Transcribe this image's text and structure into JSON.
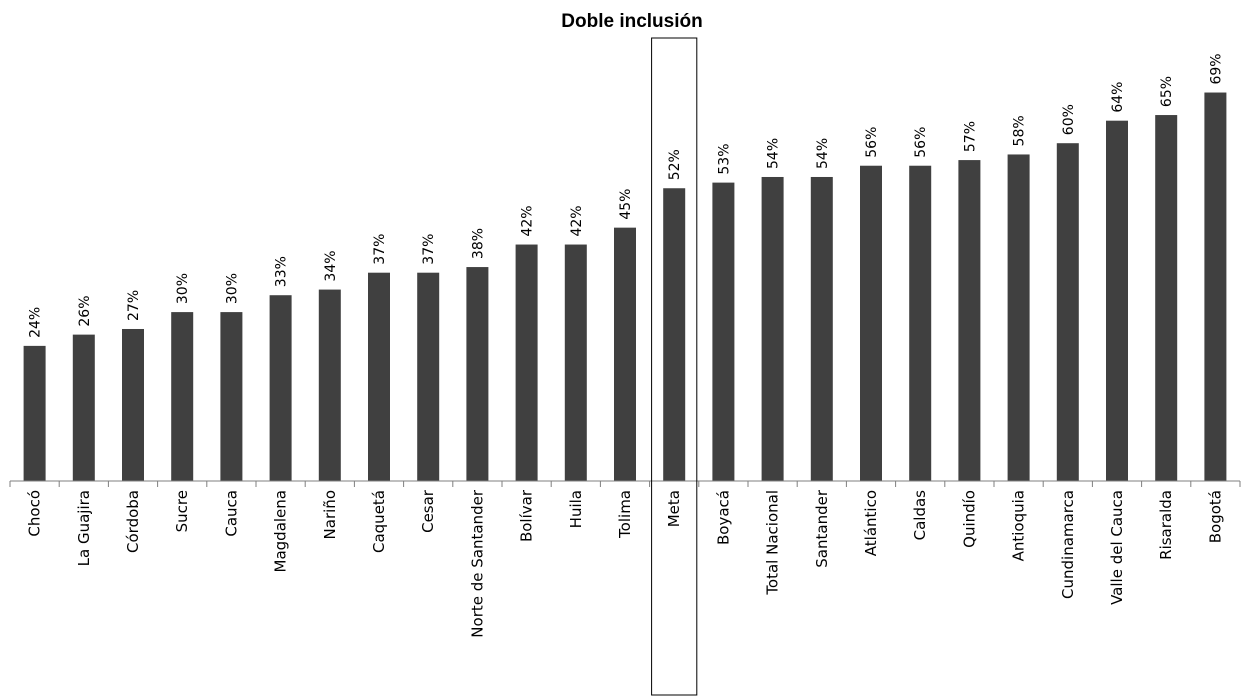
{
  "chart_data": {
    "type": "bar",
    "title": "Doble inclusión",
    "categories": [
      "Chocó",
      "La Guajira",
      "Córdoba",
      "Sucre",
      "Cauca",
      "Magdalena",
      "Nariño",
      "Caquetá",
      "Cesar",
      "Norte de Santander",
      "Bolívar",
      "Huila",
      "Tolima",
      "Meta",
      "Boyacá",
      "Total Nacional",
      "Santander",
      "Atlántico",
      "Caldas",
      "Quindío",
      "Antioquia",
      "Cundinamarca",
      "Valle del Cauca",
      "Risaralda",
      "Bogotá"
    ],
    "values": [
      24,
      26,
      27,
      30,
      30,
      33,
      34,
      37,
      37,
      38,
      42,
      42,
      45,
      52,
      53,
      54,
      54,
      56,
      56,
      57,
      58,
      60,
      64,
      65,
      69
    ],
    "value_labels": [
      "24%",
      "26%",
      "27%",
      "30%",
      "30%",
      "33%",
      "34%",
      "37%",
      "37%",
      "38%",
      "42%",
      "42%",
      "45%",
      "52%",
      "53%",
      "54%",
      "54%",
      "56%",
      "56%",
      "57%",
      "58%",
      "60%",
      "64%",
      "65%",
      "69%"
    ],
    "highlighted_category": "Meta",
    "ylim": [
      0,
      75
    ],
    "xlabel": "",
    "ylabel": "",
    "grid": false,
    "bar_color": "#404040"
  }
}
